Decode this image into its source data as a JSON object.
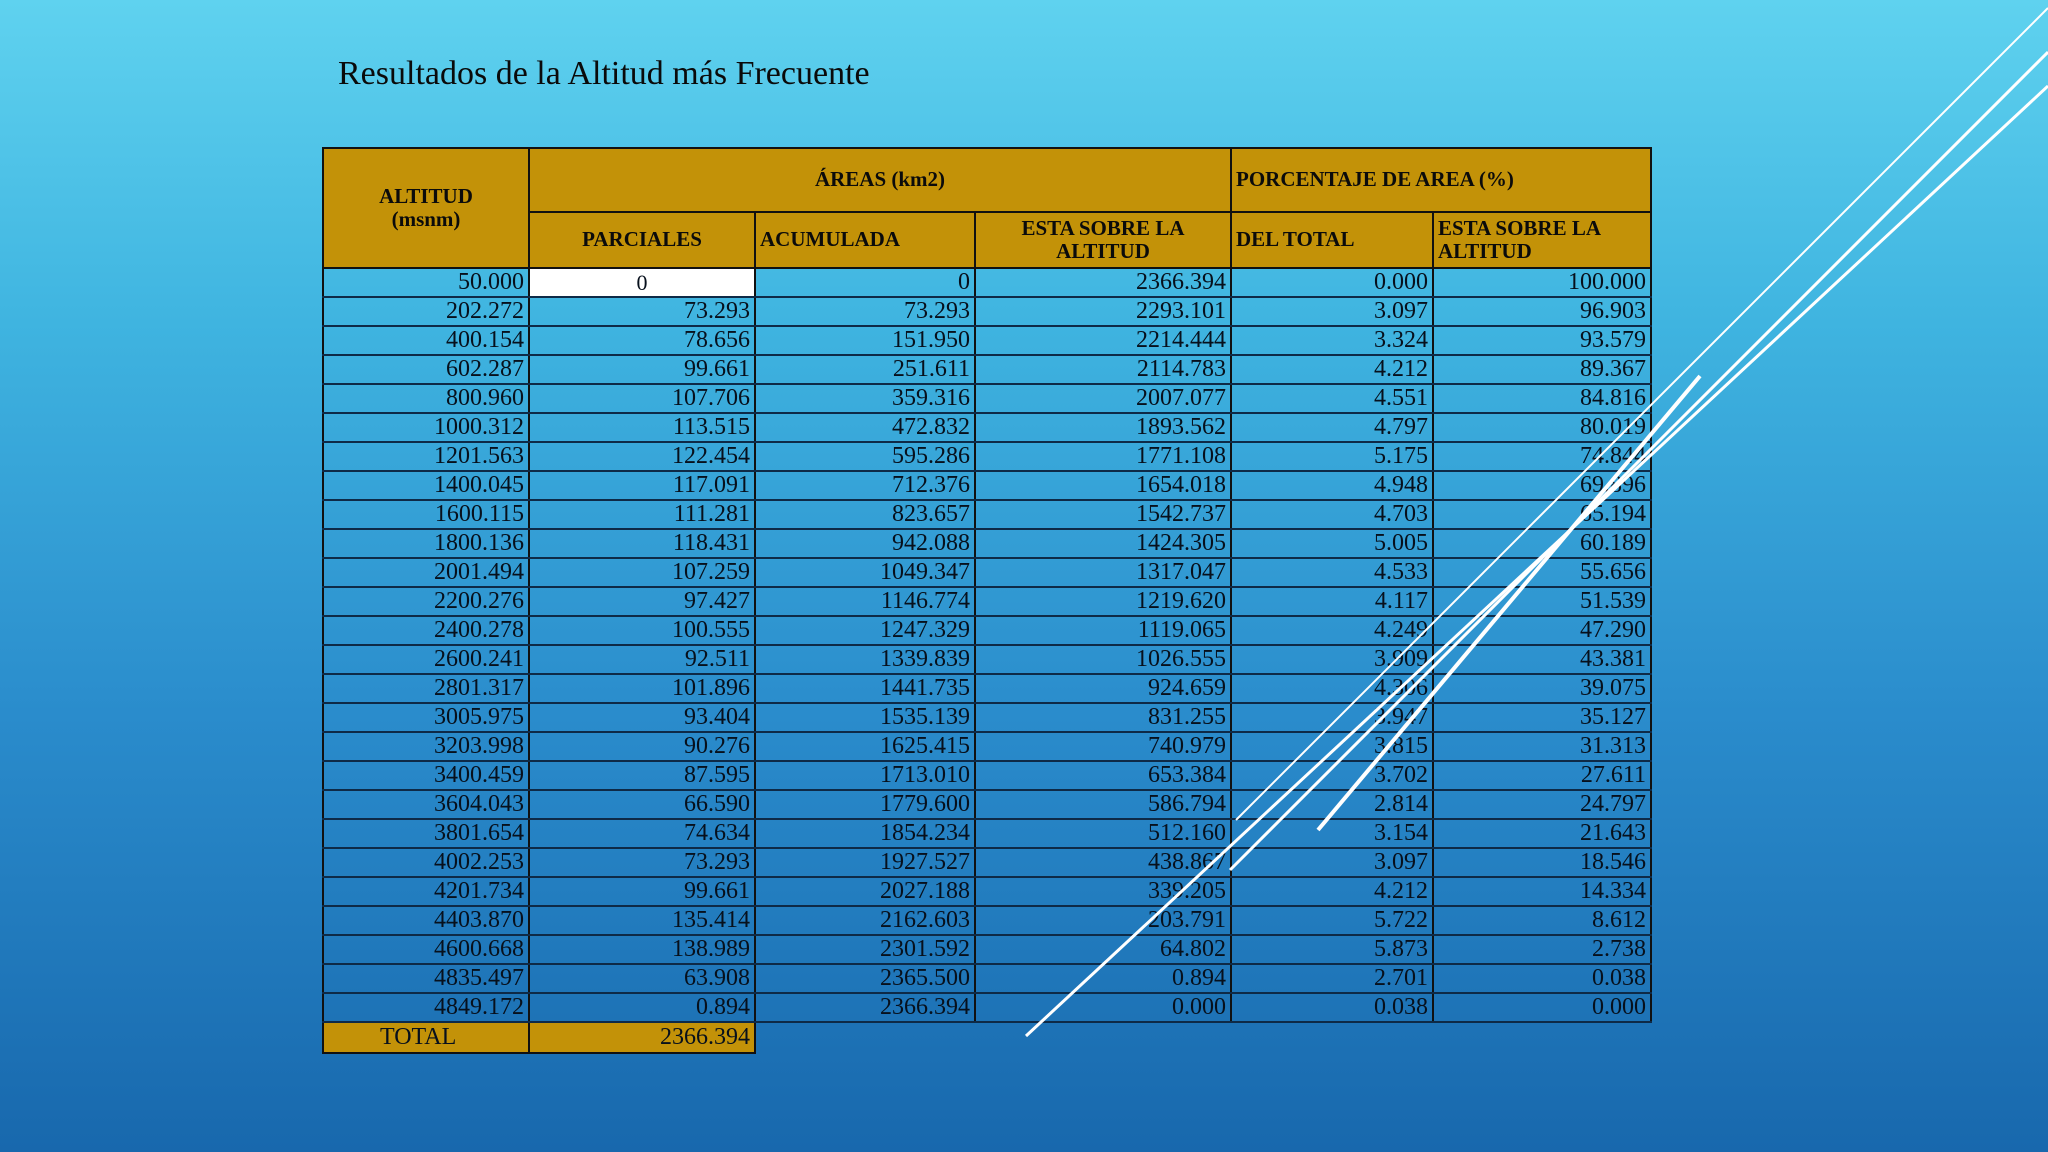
{
  "slide": {
    "title": "Resultados de la Altitud más Frecuente"
  },
  "table": {
    "headers": {
      "altitud": "ALTITUD\n(msnm)",
      "areas": "ÁREAS  (km2)",
      "porcentaje": "PORCENTAJE DE AREA (%)",
      "parciales": "PARCIALES",
      "acumulada": "ACUMULADA",
      "esta_sobre": "ESTA SOBRE LA ALTITUD",
      "del_total": "DEL TOTAL",
      "esta_sobre_pct": "ESTA SOBRE LA ALTITUD"
    },
    "rows": [
      [
        "50.000",
        "0",
        "0",
        "2366.394",
        "0.000",
        "100.000"
      ],
      [
        "202.272",
        "73.293",
        "73.293",
        "2293.101",
        "3.097",
        "96.903"
      ],
      [
        "400.154",
        "78.656",
        "151.950",
        "2214.444",
        "3.324",
        "93.579"
      ],
      [
        "602.287",
        "99.661",
        "251.611",
        "2114.783",
        "4.212",
        "89.367"
      ],
      [
        "800.960",
        "107.706",
        "359.316",
        "2007.077",
        "4.551",
        "84.816"
      ],
      [
        "1000.312",
        "113.515",
        "472.832",
        "1893.562",
        "4.797",
        "80.019"
      ],
      [
        "1201.563",
        "122.454",
        "595.286",
        "1771.108",
        "5.175",
        "74.844"
      ],
      [
        "1400.045",
        "117.091",
        "712.376",
        "1654.018",
        "4.948",
        "69.896"
      ],
      [
        "1600.115",
        "111.281",
        "823.657",
        "1542.737",
        "4.703",
        "65.194"
      ],
      [
        "1800.136",
        "118.431",
        "942.088",
        "1424.305",
        "5.005",
        "60.189"
      ],
      [
        "2001.494",
        "107.259",
        "1049.347",
        "1317.047",
        "4.533",
        "55.656"
      ],
      [
        "2200.276",
        "97.427",
        "1146.774",
        "1219.620",
        "4.117",
        "51.539"
      ],
      [
        "2400.278",
        "100.555",
        "1247.329",
        "1119.065",
        "4.249",
        "47.290"
      ],
      [
        "2600.241",
        "92.511",
        "1339.839",
        "1026.555",
        "3.909",
        "43.381"
      ],
      [
        "2801.317",
        "101.896",
        "1441.735",
        "924.659",
        "4.306",
        "39.075"
      ],
      [
        "3005.975",
        "93.404",
        "1535.139",
        "831.255",
        "3.947",
        "35.127"
      ],
      [
        "3203.998",
        "90.276",
        "1625.415",
        "740.979",
        "3.815",
        "31.313"
      ],
      [
        "3400.459",
        "87.595",
        "1713.010",
        "653.384",
        "3.702",
        "27.611"
      ],
      [
        "3604.043",
        "66.590",
        "1779.600",
        "586.794",
        "2.814",
        "24.797"
      ],
      [
        "3801.654",
        "74.634",
        "1854.234",
        "512.160",
        "3.154",
        "21.643"
      ],
      [
        "4002.253",
        "73.293",
        "1927.527",
        "438.867",
        "3.097",
        "18.546"
      ],
      [
        "4201.734",
        "99.661",
        "2027.188",
        "339.205",
        "4.212",
        "14.334"
      ],
      [
        "4403.870",
        "135.414",
        "2162.603",
        "203.791",
        "5.722",
        "8.612"
      ],
      [
        "4600.668",
        "138.989",
        "2301.592",
        "64.802",
        "5.873",
        "2.738"
      ],
      [
        "4835.497",
        "63.908",
        "2365.500",
        "0.894",
        "2.701",
        "0.038"
      ],
      [
        "4849.172",
        "0.894",
        "2366.394",
        "0.000",
        "0.038",
        "0.000"
      ]
    ],
    "total_label": "TOTAL",
    "total_value": "2366.394"
  },
  "colors": {
    "header_gold": "#c39208",
    "background_top": "#5fd2ef",
    "background_bottom": "#1868ad",
    "deco_line": "#ffffff"
  }
}
